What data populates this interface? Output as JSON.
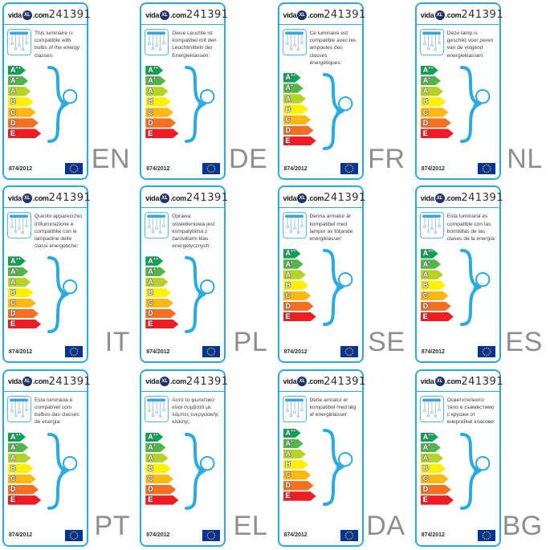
{
  "product_number": "241391",
  "brand": {
    "vida": "vida",
    "badge": "XL",
    "com": ".com"
  },
  "regulation": "874/2012",
  "energy_classes": [
    {
      "label": "A",
      "sup": "++",
      "color": "#00a651"
    },
    {
      "label": "A",
      "sup": "+",
      "color": "#51b748"
    },
    {
      "label": "A",
      "sup": "",
      "color": "#b5d327"
    },
    {
      "label": "B",
      "sup": "",
      "color": "#fff101"
    },
    {
      "label": "C",
      "sup": "",
      "color": "#fdb813"
    },
    {
      "label": "D",
      "sup": "",
      "color": "#f36f21"
    },
    {
      "label": "E",
      "sup": "",
      "color": "#ee1c25"
    }
  ],
  "cards": [
    {
      "lang": "EN",
      "description": "This luminaire is compatible with bulbs of the energy classes:"
    },
    {
      "lang": "DE",
      "description": "Diese Leuchte ist kompatibel mit den Leuchtmitteln der Energieklassen:"
    },
    {
      "lang": "FR",
      "description": "Ce luminaire est compatible avec les ampoules des classes énergétiques:"
    },
    {
      "lang": "NL",
      "description": "Deze lamp is geschikt voor peren van de volgend energieklassen:"
    },
    {
      "lang": "IT",
      "description": "Questo apparecchio d'illuminazione è compatibile con le lampadine delle classi energetiche:"
    },
    {
      "lang": "PL",
      "description": "Oprawa oświetleniowa jest kompatybilna z żarówkami klas energetycznych:"
    },
    {
      "lang": "SE",
      "description": "Denna armatur är kompatibel med lampor av följande energiklasser:"
    },
    {
      "lang": "ES",
      "description": "Esta luminaria es compatible con las bombillas de las clases de la energía:"
    },
    {
      "lang": "PT",
      "description": "Esta luminária é compatível com bulbos das classes de energia:"
    },
    {
      "lang": "EL",
      "description": "Αυτό το φωτιστικό είναι συμβατό με λάμπες ενεργειακής κλάσης:"
    },
    {
      "lang": "DA",
      "description": "Dette armatur er kompatibel med løg af energiklasser:"
    },
    {
      "lang": "BG",
      "description": "Осветителното тяло е съвместимо с крушки от енергийни класове:"
    }
  ],
  "colors": {
    "card_border": "#29abe2",
    "accent_blue": "#29abe2",
    "lang_code_gray": "#8e8e8e",
    "eu_flag_blue": "#003399",
    "eu_star_yellow": "#ffcc00"
  }
}
